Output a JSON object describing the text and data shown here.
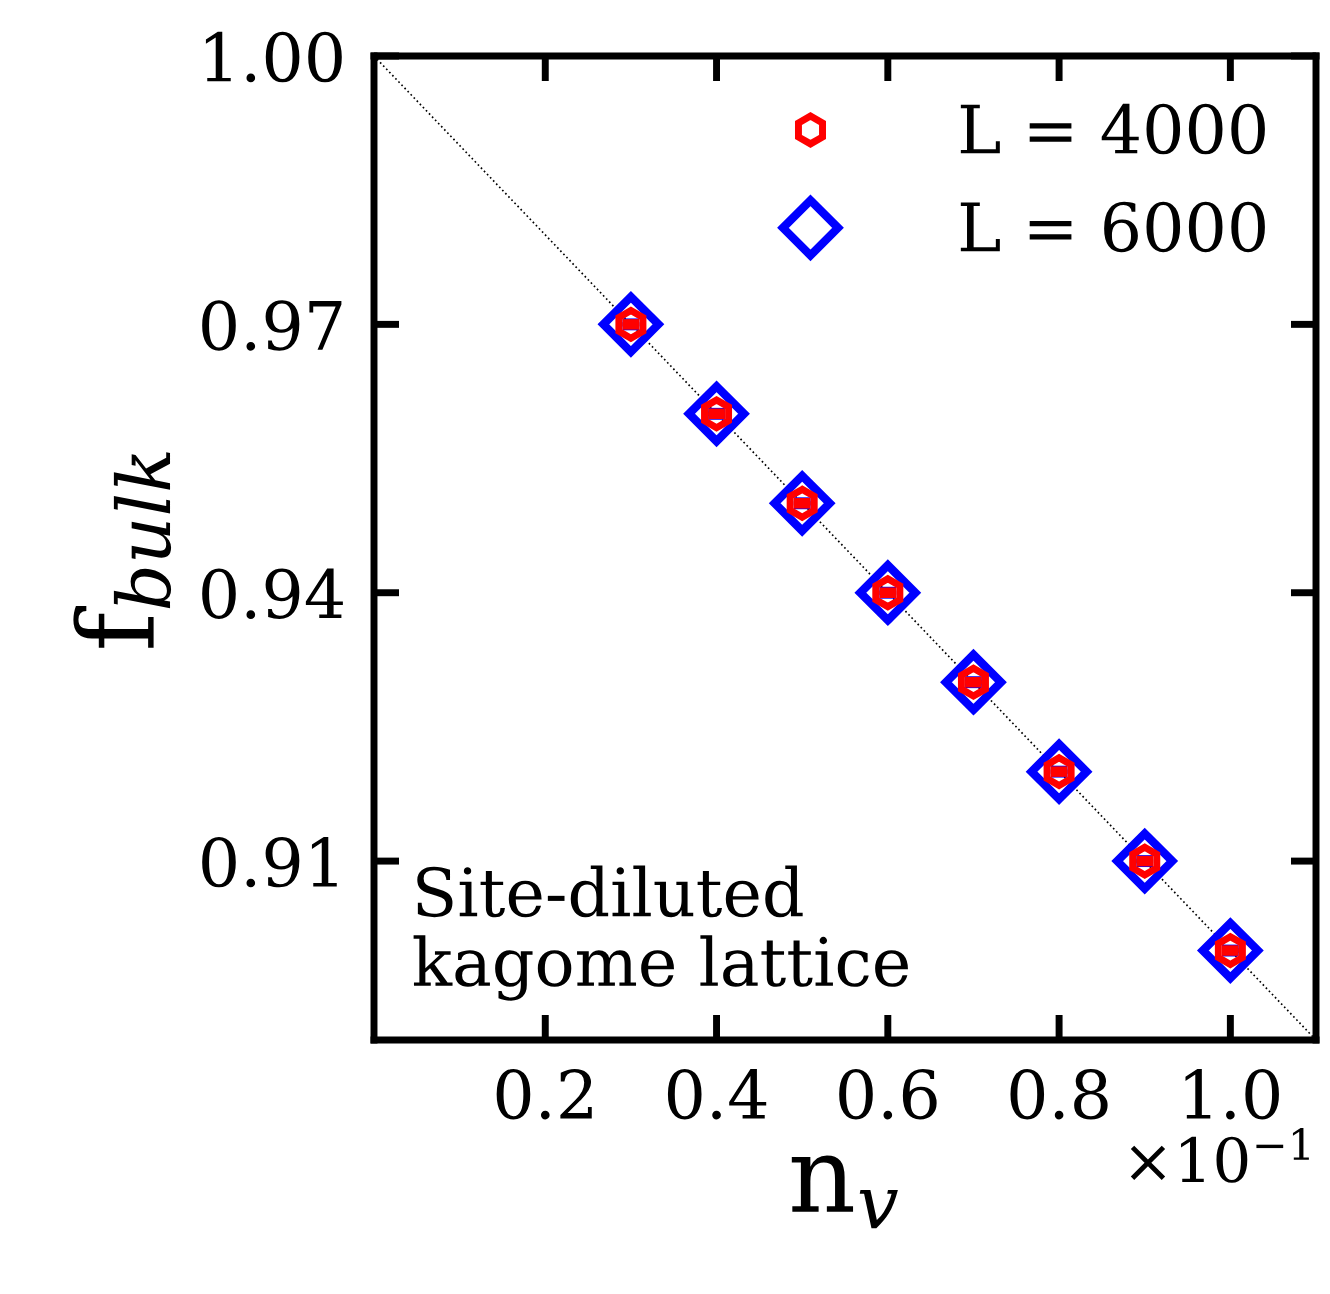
{
  "chart_data": {
    "type": "scatter",
    "xlabel": "n$_{v}$",
    "ylabel": "f$_{bulk}$",
    "x": [
      0.3,
      0.4,
      0.5,
      0.6,
      0.7,
      0.8,
      0.9,
      1.0
    ],
    "series": [
      {
        "name": "L = 4000",
        "color": "#ff0000",
        "values": [
          0.97,
          0.96,
          0.95,
          0.94,
          0.93,
          0.92,
          0.91,
          0.9
        ],
        "errors": [
          0.0002,
          0.0002,
          0.0002,
          0.0002,
          0.0002,
          0.0002,
          0.0002,
          0.0002
        ]
      },
      {
        "name": "L = 6000",
        "color": "#0000ff",
        "marker": "diamond",
        "values": [
          0.97,
          0.96,
          0.95,
          0.94,
          0.93,
          0.92,
          0.91,
          0.9
        ],
        "errors": [
          0.0002,
          0.0002,
          0.0002,
          0.0002,
          0.0002,
          0.0002,
          0.0002,
          0.0002
        ]
      },
      {
        "type": "line",
        "color": "#000000",
        "line_style": "dotted",
        "x": [
          0,
          1.1
        ],
        "values": [
          1.0,
          0.89
        ]
      }
    ],
    "xlim": [
      0,
      1.1
    ],
    "ylim": [
      0.89,
      1.0
    ],
    "xticks": [
      0.2,
      0.4,
      0.6,
      0.8,
      {
        "value": 1.0,
        "label": "1.0"
      }
    ],
    "yticks": [
      0.91,
      0.94,
      0.97,
      {
        "value": 1.0,
        "label": "1.00"
      }
    ],
    "annotations": [
      "×10$^{−1}$",
      "Site-diluted\nkagome lattice"
    ],
    "legend": "top right",
    "grid": false
  }
}
